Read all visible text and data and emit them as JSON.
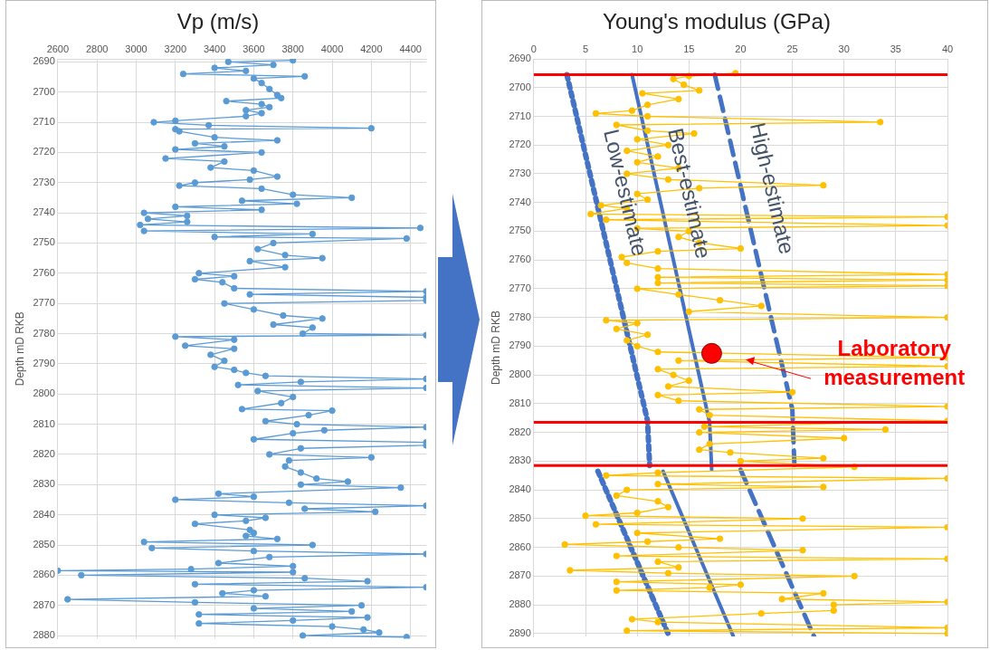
{
  "chart_data": [
    {
      "type": "line",
      "title": "Vp (m/s)",
      "ylabel": "Depth mD RKB",
      "xlim": [
        2600,
        4480
      ],
      "xticks": [
        2600,
        2800,
        3000,
        3200,
        3400,
        3600,
        3800,
        4000,
        4200,
        4400
      ],
      "ylim": [
        2881,
        2689
      ],
      "yticks": [
        2690,
        2700,
        2710,
        2720,
        2730,
        2740,
        2750,
        2760,
        2770,
        2780,
        2790,
        2800,
        2810,
        2820,
        2830,
        2840,
        2850,
        2860,
        2870,
        2880
      ],
      "grid": true,
      "legend": false,
      "marker": "circle",
      "series": [
        {
          "color": "#5b9bd5",
          "x": [
            3800,
            3470,
            3700,
            3400,
            3560,
            3240,
            3860,
            3600,
            3640,
            3680,
            3720,
            3740,
            3460,
            3640,
            3680,
            3560,
            3640,
            3560,
            3200,
            3090,
            3370,
            4200,
            3200,
            3220,
            3400,
            3720,
            3300,
            3450,
            3200,
            3640,
            3150,
            3450,
            3380,
            3600,
            3720,
            3580,
            3300,
            3220,
            3640,
            3800,
            4100,
            3540,
            3820,
            3200,
            3640,
            3040,
            3260,
            3060,
            3260,
            3020,
            4450,
            3040,
            3900,
            3400,
            4380,
            3700,
            3620,
            3760,
            3950,
            3580,
            3760,
            3320,
            3500,
            3300,
            3440,
            3500,
            4480,
            3580,
            4480,
            4480,
            3450,
            3600,
            3750,
            3950,
            3700,
            3900,
            3850,
            4480,
            3200,
            3500,
            3250,
            3500,
            3380,
            3450,
            3400,
            3500,
            3560,
            3660,
            4480,
            3840,
            3520,
            4480,
            3620,
            3800,
            3740,
            3540,
            4000,
            3880,
            3660,
            3820,
            4480,
            3960,
            3800,
            3600,
            4480,
            4480,
            3840,
            3680,
            4200,
            3780,
            3760,
            3840,
            3920,
            4080,
            3840,
            4350,
            3420,
            3600,
            3200,
            3780,
            4480,
            3860,
            4220,
            3400,
            3660,
            3560,
            3300,
            3580,
            3600,
            3560,
            3720,
            3040,
            3900,
            3080,
            3600,
            4480,
            3680,
            3420,
            3800,
            3280,
            2600,
            3800,
            2720,
            3860,
            4180,
            3300,
            4480,
            3600,
            3440,
            3660,
            2650,
            3300,
            4150,
            3600,
            4100,
            3320,
            4180,
            3800,
            3320,
            4000,
            4160,
            4240,
            3850,
            4380
          ],
          "values": [
            2689.5,
            2690,
            2691,
            2692,
            2693,
            2694,
            2694.8,
            2695.5,
            2697,
            2699,
            2701,
            2702,
            2703,
            2704,
            2705,
            2706,
            2707,
            2708,
            2709.5,
            2710,
            2711,
            2712,
            2712.3,
            2713,
            2715,
            2716,
            2717,
            2718,
            2719,
            2720,
            2722,
            2723,
            2725,
            2726,
            2728,
            2729,
            2730,
            2731,
            2732,
            2734,
            2735,
            2736,
            2737,
            2738,
            2739,
            2740,
            2741,
            2742,
            2743,
            2744,
            2745,
            2746,
            2747,
            2748,
            2748.5,
            2750,
            2752,
            2754,
            2755,
            2756,
            2758,
            2760,
            2761,
            2762,
            2763,
            2765,
            2766,
            2767,
            2768,
            2769,
            2770,
            2772,
            2774,
            2775,
            2777,
            2778,
            2780,
            2780.5,
            2781,
            2782,
            2784,
            2785,
            2787,
            2789,
            2791,
            2792,
            2793,
            2794,
            2795,
            2796,
            2797,
            2798,
            2799,
            2801,
            2803,
            2805,
            2805.5,
            2807,
            2809,
            2810,
            2811,
            2812,
            2813,
            2815,
            2816,
            2817,
            2818,
            2820,
            2821,
            2822,
            2824,
            2826,
            2828,
            2829,
            2830,
            2831,
            2833,
            2834,
            2835,
            2836,
            2837,
            2838,
            2839,
            2840,
            2841,
            2842,
            2843,
            2845,
            2846,
            2847,
            2848,
            2849,
            2850,
            2851,
            2852,
            2853,
            2854,
            2856,
            2857,
            2858,
            2858.5,
            2859,
            2860,
            2861,
            2862,
            2863,
            2864,
            2865,
            2866,
            2867,
            2868,
            2869,
            2870,
            2871,
            2872,
            2873,
            2874,
            2875,
            2876,
            2877,
            2878,
            2879,
            2880,
            2880.5
          ]
        }
      ]
    },
    {
      "type": "line",
      "title": "Young's modulus (GPa)",
      "ylabel": "Depth mD RKB",
      "xlim": [
        0,
        40
      ],
      "xticks": [
        0,
        5,
        10,
        15,
        20,
        25,
        30,
        35,
        40
      ],
      "ylim": [
        2891,
        2690
      ],
      "yticks": [
        2690,
        2700,
        2710,
        2720,
        2730,
        2740,
        2750,
        2760,
        2770,
        2780,
        2790,
        2800,
        2810,
        2820,
        2830,
        2840,
        2850,
        2860,
        2870,
        2880,
        2890
      ],
      "grid": true,
      "legend": false,
      "ref_lines": [
        {
          "axis": "y",
          "value": 2695.5,
          "color": "#ff0000"
        },
        {
          "axis": "y",
          "value": 2816.5,
          "color": "#ff0000"
        },
        {
          "axis": "y",
          "value": 2831.5,
          "color": "#ff0000"
        }
      ],
      "annotations": [
        {
          "text": "Laboratory measurement",
          "x": 20.5,
          "y": 2795
        }
      ],
      "series": [
        {
          "color": "#ffc000",
          "marker": "circle",
          "x": [
            19.5,
            15,
            13.5,
            14.5,
            16,
            10.5,
            14,
            11,
            9.5,
            6,
            11,
            33.5,
            8,
            11,
            15.5,
            10,
            13,
            9,
            12,
            10,
            14,
            9,
            13,
            28,
            16,
            10,
            11,
            6.5,
            9,
            5.5,
            40,
            7,
            40,
            10,
            15,
            14,
            16,
            20,
            12,
            8.5,
            9,
            12,
            40,
            12,
            40,
            12,
            40,
            10,
            14,
            18,
            22,
            15,
            40,
            7,
            10,
            8,
            11,
            9,
            10,
            12,
            40,
            14,
            40,
            12,
            13.5,
            15,
            13,
            25,
            12,
            14,
            40,
            16,
            17,
            40,
            16.5,
            34,
            16,
            30,
            17,
            16,
            19,
            28,
            20,
            31,
            12,
            7,
            40,
            12,
            28,
            9,
            8,
            12,
            13,
            10,
            5,
            26,
            6,
            40,
            10,
            18,
            11,
            3,
            14,
            26,
            8,
            40,
            12,
            14,
            3.5,
            13,
            31,
            8,
            20,
            17,
            8,
            28,
            24,
            40,
            29,
            29,
            22,
            9.5,
            12,
            40,
            9,
            40
          ],
          "values": [
            2695,
            2696,
            2697,
            2699,
            2701,
            2702,
            2704,
            2706,
            2708,
            2709,
            2710,
            2712,
            2713,
            2715,
            2716,
            2718,
            2720,
            2722,
            2724,
            2726,
            2728,
            2730,
            2732,
            2734,
            2735,
            2737,
            2739,
            2741,
            2742,
            2744,
            2745,
            2746,
            2748,
            2749,
            2750,
            2752,
            2754,
            2756,
            2757,
            2759,
            2761,
            2763,
            2765,
            2766,
            2767,
            2768,
            2769,
            2770,
            2772,
            2774,
            2776,
            2778,
            2780,
            2781,
            2782,
            2784,
            2786,
            2788,
            2790,
            2792,
            2794,
            2795,
            2797,
            2798,
            2800,
            2802,
            2804,
            2806,
            2807,
            2809,
            2811,
            2812,
            2814,
            2816,
            2818,
            2819,
            2820,
            2822,
            2824,
            2826,
            2827,
            2829,
            2830,
            2832,
            2834,
            2835,
            2836,
            2838,
            2839,
            2840,
            2842,
            2844,
            2846,
            2848,
            2849,
            2850,
            2852,
            2853,
            2855,
            2857,
            2858,
            2859,
            2860,
            2861,
            2863,
            2864,
            2865,
            2867,
            2868,
            2869,
            2870,
            2872,
            2873,
            2874,
            2875,
            2876,
            2878,
            2879,
            2880,
            2882,
            2883,
            2885,
            2886,
            2888,
            2889,
            2890
          ]
        },
        {
          "name": "Low-estimate",
          "color": "#4472c4",
          "marker": "none",
          "line_style": "dotted",
          "x": [
            3.2,
            11,
            11.2,
            null,
            6.2,
            13.1
          ],
          "values": [
            2695.5,
            2816,
            2831.5,
            null,
            2833.5,
            2891
          ]
        },
        {
          "name": "Best-estimate",
          "color": "#4472c4",
          "marker": "none",
          "line_style": "solid",
          "x": [
            9.5,
            17,
            17.2,
            null,
            12.5,
            19.3
          ],
          "values": [
            2695.5,
            2816.5,
            2833,
            null,
            2833.5,
            2891
          ]
        },
        {
          "name": "High-estimate",
          "color": "#4472c4",
          "marker": "none",
          "line_style": "dashed",
          "x": [
            17.5,
            25,
            25.2,
            null,
            20,
            27.1
          ],
          "values": [
            2695.5,
            2812,
            2831.5,
            null,
            2833,
            2891
          ]
        },
        {
          "type": "scatter",
          "color": "#ff0000",
          "marker": "circle",
          "x": [
            17.2
          ],
          "values": [
            2792.5
          ]
        }
      ]
    }
  ]
}
